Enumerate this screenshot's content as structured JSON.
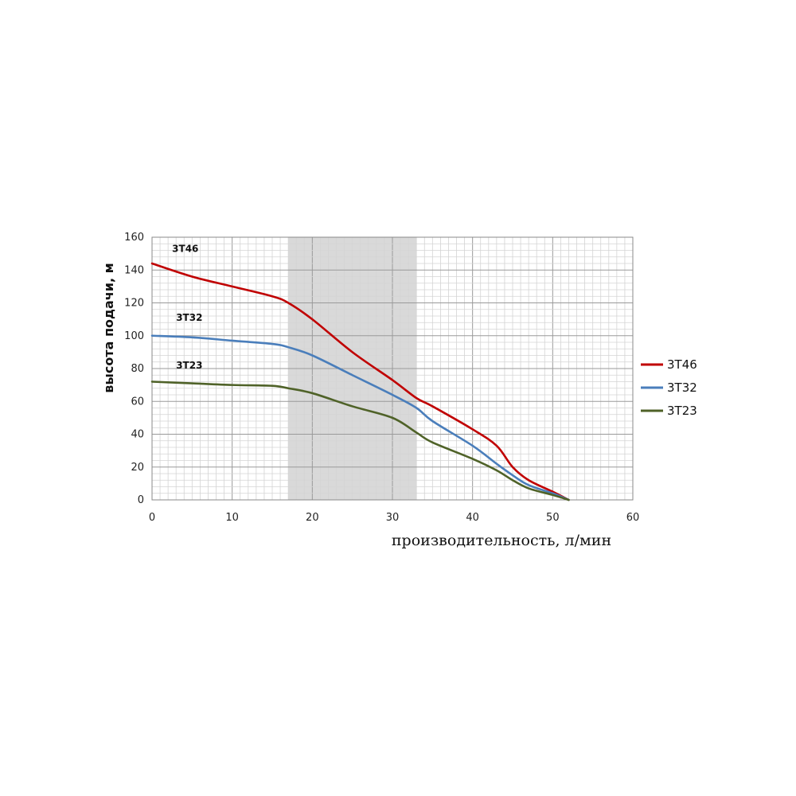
{
  "chart_data": {
    "type": "line",
    "ylabel": "высота подачи, м",
    "xlabel": "производительность, л/мин",
    "xlim": [
      0,
      60
    ],
    "ylim": [
      0,
      160
    ],
    "xticks": [
      0,
      10,
      20,
      30,
      40,
      50,
      60
    ],
    "yticks": [
      0,
      20,
      40,
      60,
      80,
      100,
      120,
      140,
      160
    ],
    "grid": true,
    "legend_position": "right",
    "highlight_band": {
      "x": [
        17,
        33
      ],
      "color": "#d9d9d9"
    },
    "series": [
      {
        "name": "3T46",
        "color": "#c00000",
        "x": [
          0,
          5,
          10,
          15,
          17,
          20,
          25,
          30,
          33,
          35,
          40,
          43,
          45,
          47,
          50,
          52
        ],
        "y": [
          144,
          136,
          130,
          124,
          120,
          110,
          90,
          73,
          62,
          57,
          43,
          33,
          20,
          12,
          5,
          0
        ]
      },
      {
        "name": "3T32",
        "color": "#4a7ebb",
        "x": [
          0,
          5,
          10,
          15,
          17,
          20,
          25,
          30,
          33,
          35,
          40,
          43,
          45,
          47,
          50,
          52
        ],
        "y": [
          100,
          99,
          97,
          95,
          93,
          88,
          76,
          64,
          56,
          48,
          33,
          22,
          15,
          9,
          4,
          0
        ]
      },
      {
        "name": "3T23",
        "color": "#4f6228",
        "x": [
          0,
          5,
          10,
          15,
          17,
          20,
          25,
          30,
          33,
          35,
          40,
          43,
          45,
          47,
          50,
          52
        ],
        "y": [
          72,
          71,
          70,
          69.5,
          68,
          65,
          57,
          50,
          41,
          35,
          25,
          18,
          12,
          7,
          3,
          0
        ]
      }
    ]
  }
}
